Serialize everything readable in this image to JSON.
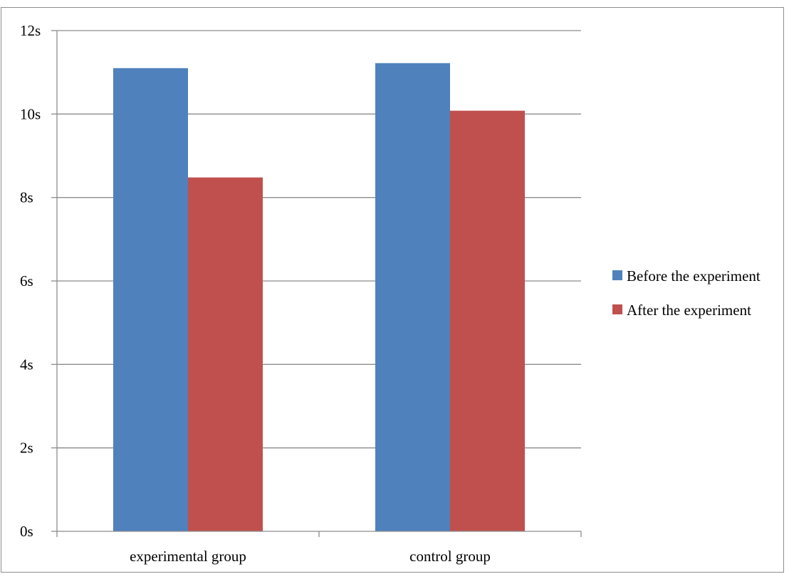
{
  "chart_data": {
    "type": "bar",
    "categories": [
      "experimental group",
      "control group"
    ],
    "series": [
      {
        "name": "Before the experiment",
        "color": "#4F81BD",
        "values": [
          11.1,
          11.22
        ]
      },
      {
        "name": "After the experiment",
        "color": "#C0504D",
        "values": [
          8.48,
          10.08
        ]
      }
    ],
    "y_ticks": [
      "0s",
      "2s",
      "4s",
      "6s",
      "8s",
      "10s",
      "12s"
    ],
    "y_tick_values": [
      0,
      2,
      4,
      6,
      8,
      10,
      12
    ],
    "ylim": [
      0,
      12
    ],
    "grid": true,
    "legend_position": "right",
    "title": "",
    "xlabel": "",
    "ylabel": ""
  }
}
